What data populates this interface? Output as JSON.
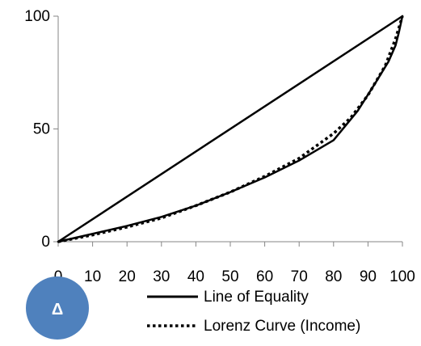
{
  "chart_data": {
    "type": "line",
    "title": "",
    "xlabel": "",
    "ylabel": "",
    "xlim": [
      0,
      100
    ],
    "ylim": [
      0,
      100
    ],
    "x_ticks": [
      0,
      10,
      20,
      30,
      40,
      50,
      60,
      70,
      80,
      90,
      100
    ],
    "y_ticks": [
      0,
      50,
      100
    ],
    "grid": false,
    "legend_position": "bottom-right",
    "series": [
      {
        "name": "Line of Equality",
        "style": "solid",
        "color": "#000000",
        "x": [
          0,
          100
        ],
        "y": [
          0,
          100
        ]
      },
      {
        "name": "Lorenz Curve (Income)",
        "style": "dotted",
        "color": "#000000",
        "x": [
          0,
          10,
          20,
          30,
          40,
          50,
          60,
          70,
          80,
          85,
          90,
          95,
          98,
          100
        ],
        "y": [
          0,
          3,
          6.5,
          10.5,
          16,
          22,
          29,
          37,
          48,
          55,
          65,
          78,
          90,
          100
        ]
      },
      {
        "name": "",
        "style": "solid",
        "color": "#000000",
        "x": [
          0,
          10,
          20,
          30,
          40,
          50,
          60,
          70,
          80,
          87,
          92,
          96,
          98,
          99,
          100
        ],
        "y": [
          0,
          3.5,
          7,
          11,
          16,
          22,
          28.5,
          36,
          45,
          58,
          70,
          80,
          87,
          93,
          100
        ]
      }
    ]
  },
  "badge": {
    "label": "Δ",
    "color": "#4f81bd"
  }
}
